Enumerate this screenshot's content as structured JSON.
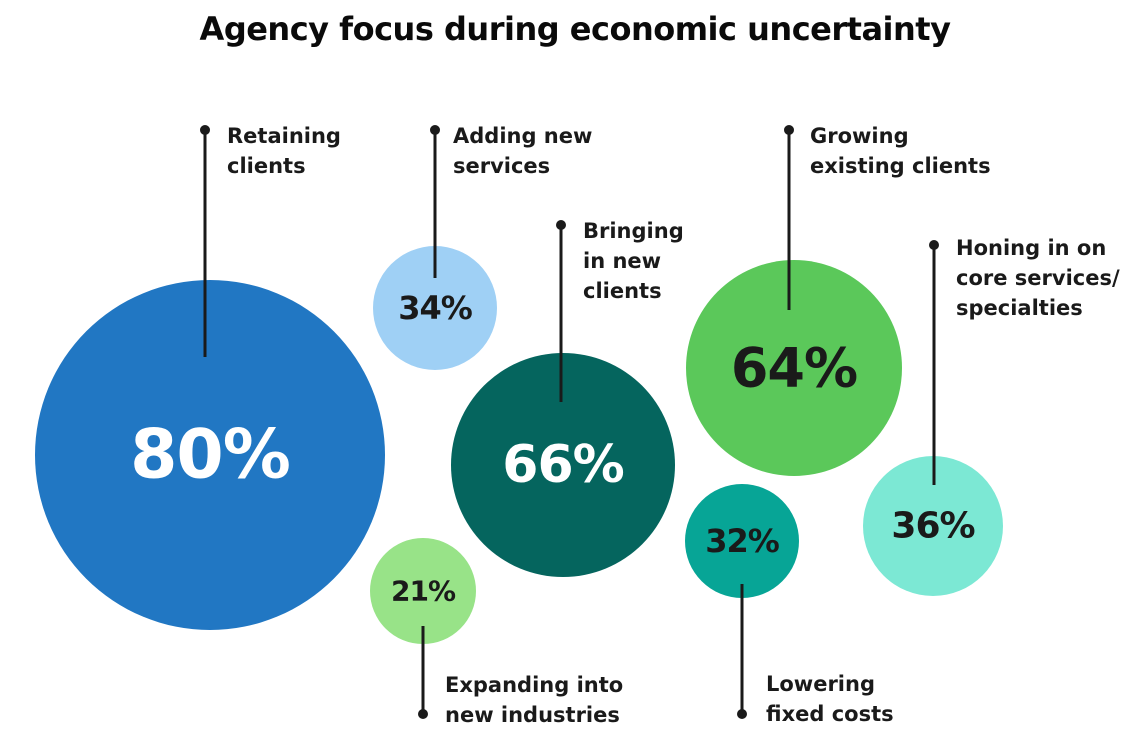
{
  "chart_data": {
    "type": "bubble",
    "title": "Agency focus during economic uncertainty",
    "unit": "%",
    "items": [
      {
        "id": "retaining-clients",
        "label": [
          "Retaining",
          "clients"
        ],
        "value": 80,
        "display": "80%",
        "color": "#2177c3",
        "text_color": "#ffffff"
      },
      {
        "id": "adding-new-services",
        "label": [
          "Adding new",
          "services"
        ],
        "value": 34,
        "display": "34%",
        "color": "#9fd0f5",
        "text_color": "#1a1a1a"
      },
      {
        "id": "bringing-in-new-clients",
        "label": [
          "Bringing",
          "in new",
          "clients"
        ],
        "value": 66,
        "display": "66%",
        "color": "#05655e",
        "text_color": "#ffffff"
      },
      {
        "id": "growing-existing-clients",
        "label": [
          "Growing",
          "existing clients"
        ],
        "value": 64,
        "display": "64%",
        "color": "#5bc85a",
        "text_color": "#1a1a1a"
      },
      {
        "id": "honing-in-core-services",
        "label": [
          "Honing in on",
          "core services/",
          "specialties"
        ],
        "value": 36,
        "display": "36%",
        "color": "#7ce8d4",
        "text_color": "#1a1a1a"
      },
      {
        "id": "expanding-into-new-industries",
        "label": [
          "Expanding into",
          "new industries"
        ],
        "value": 21,
        "display": "21%",
        "color": "#98e388",
        "text_color": "#1a1a1a"
      },
      {
        "id": "lowering-fixed-costs",
        "label": [
          "Lowering",
          "fixed costs"
        ],
        "value": 32,
        "display": "32%",
        "color": "#07a596",
        "text_color": "#1a1a1a"
      }
    ]
  }
}
